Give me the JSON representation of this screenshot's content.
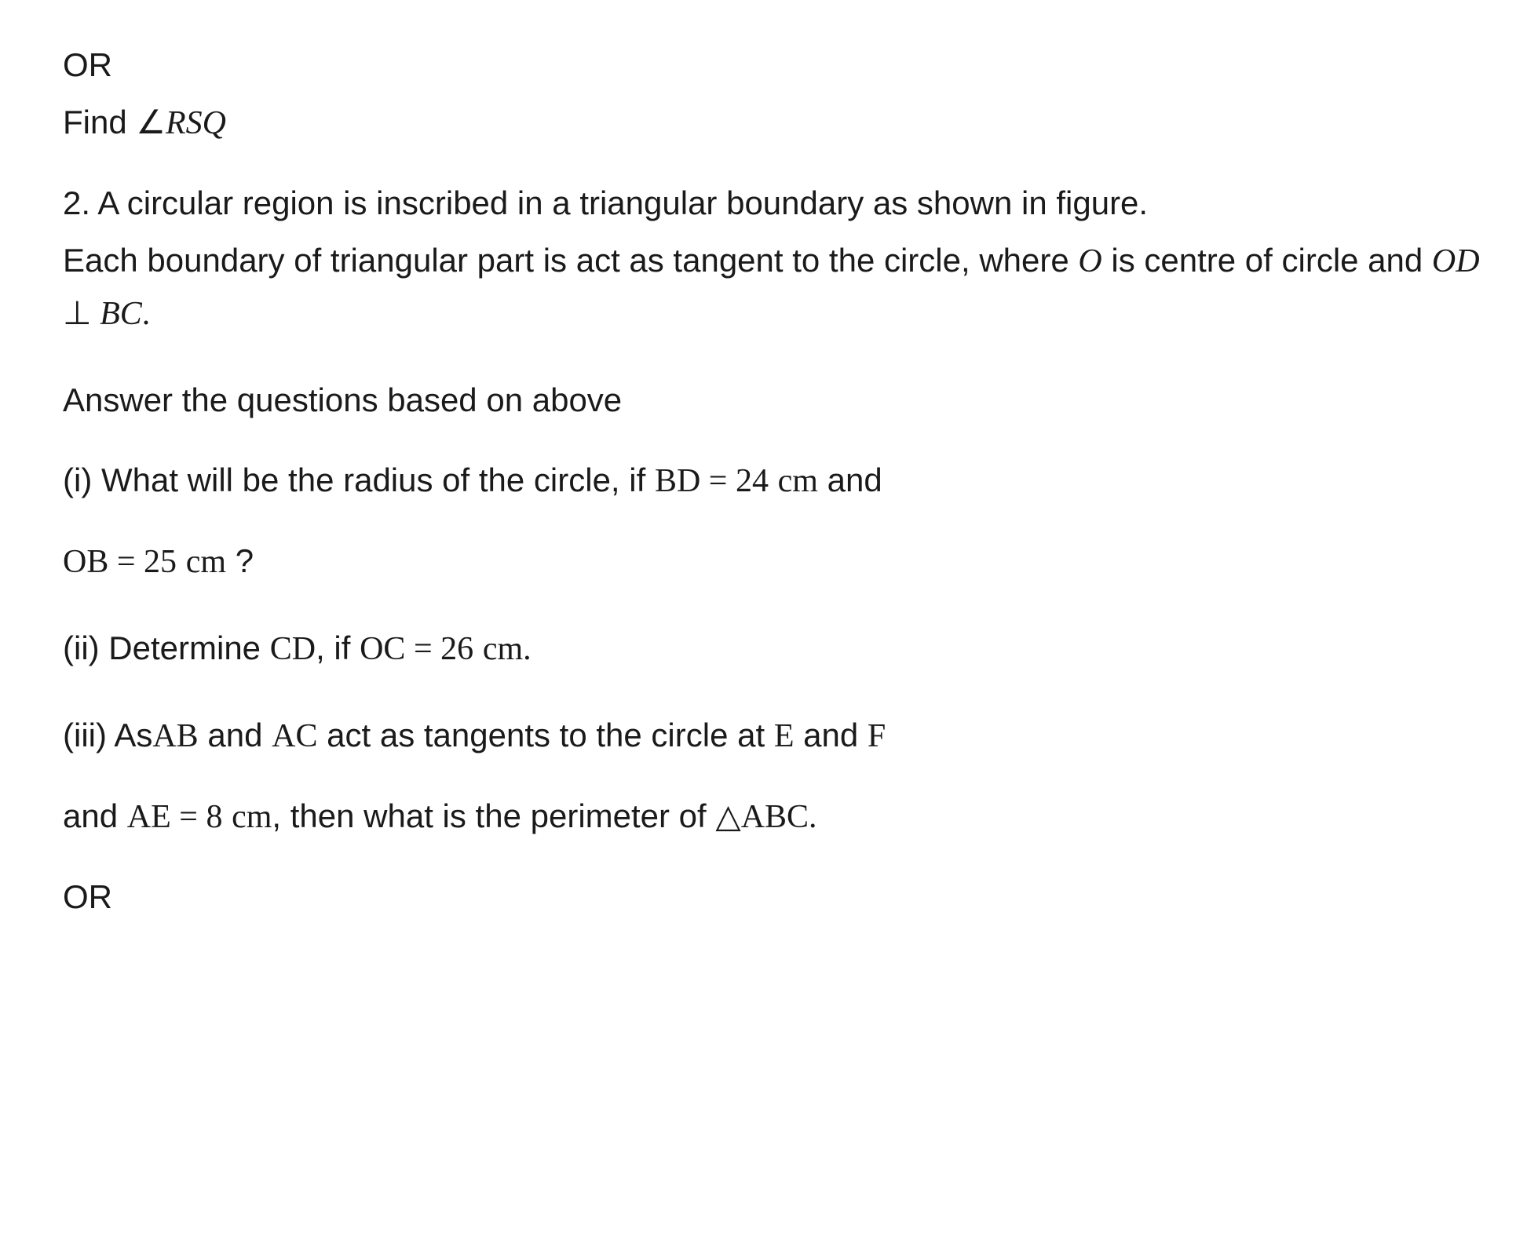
{
  "typography": {
    "body_font": "Arial, Helvetica, sans-serif",
    "math_font": "Georgia, Times New Roman, serif",
    "font_size_pt": 32,
    "text_color": "#1a1a1a",
    "background_color": "#ffffff",
    "line_height": 1.55
  },
  "lines": {
    "or1": "OR",
    "find": "Find ",
    "angle_symbol": "∠",
    "angle_name": "RSQ",
    "q2a": "2. A circular region is inscribed in a triangular boundary as shown in figure.",
    "q2b_pre": "Each boundary of triangular part is act as tangent to the circle, where ",
    "O": "O",
    "q2b_mid": " is centre of circle and ",
    "OD": "OD",
    "perp": " ⊥ ",
    "BC": "BC",
    "period": ".",
    "answer": "Answer the questions based on above",
    "i_pre": "(i) What will be the radius of the circle, if ",
    "BD": "BD",
    "eq": " = ",
    "v24": "24",
    "sp": " ",
    "cm": "cm",
    "and": " and",
    "OB": "OB",
    "v25": "25",
    "qmark": " ?",
    "ii_pre": "(ii) Determine ",
    "CD": "CD",
    "ii_mid": ", if ",
    "OC": "OC",
    "v26": "26",
    "iii_pre": "(iii) As",
    "AB": "AB",
    "iii_mid1": " and ",
    "AC": "AC",
    "iii_mid2": " act as tangents to the circle at ",
    "E": "E",
    "F": "F",
    "iii_line2a": "and ",
    "AE": "AE",
    "v8": "8",
    "iii_line2b": ", then what is the perimeter of ",
    "triangle": "△",
    "ABC": "ABC",
    "or2": "OR"
  }
}
